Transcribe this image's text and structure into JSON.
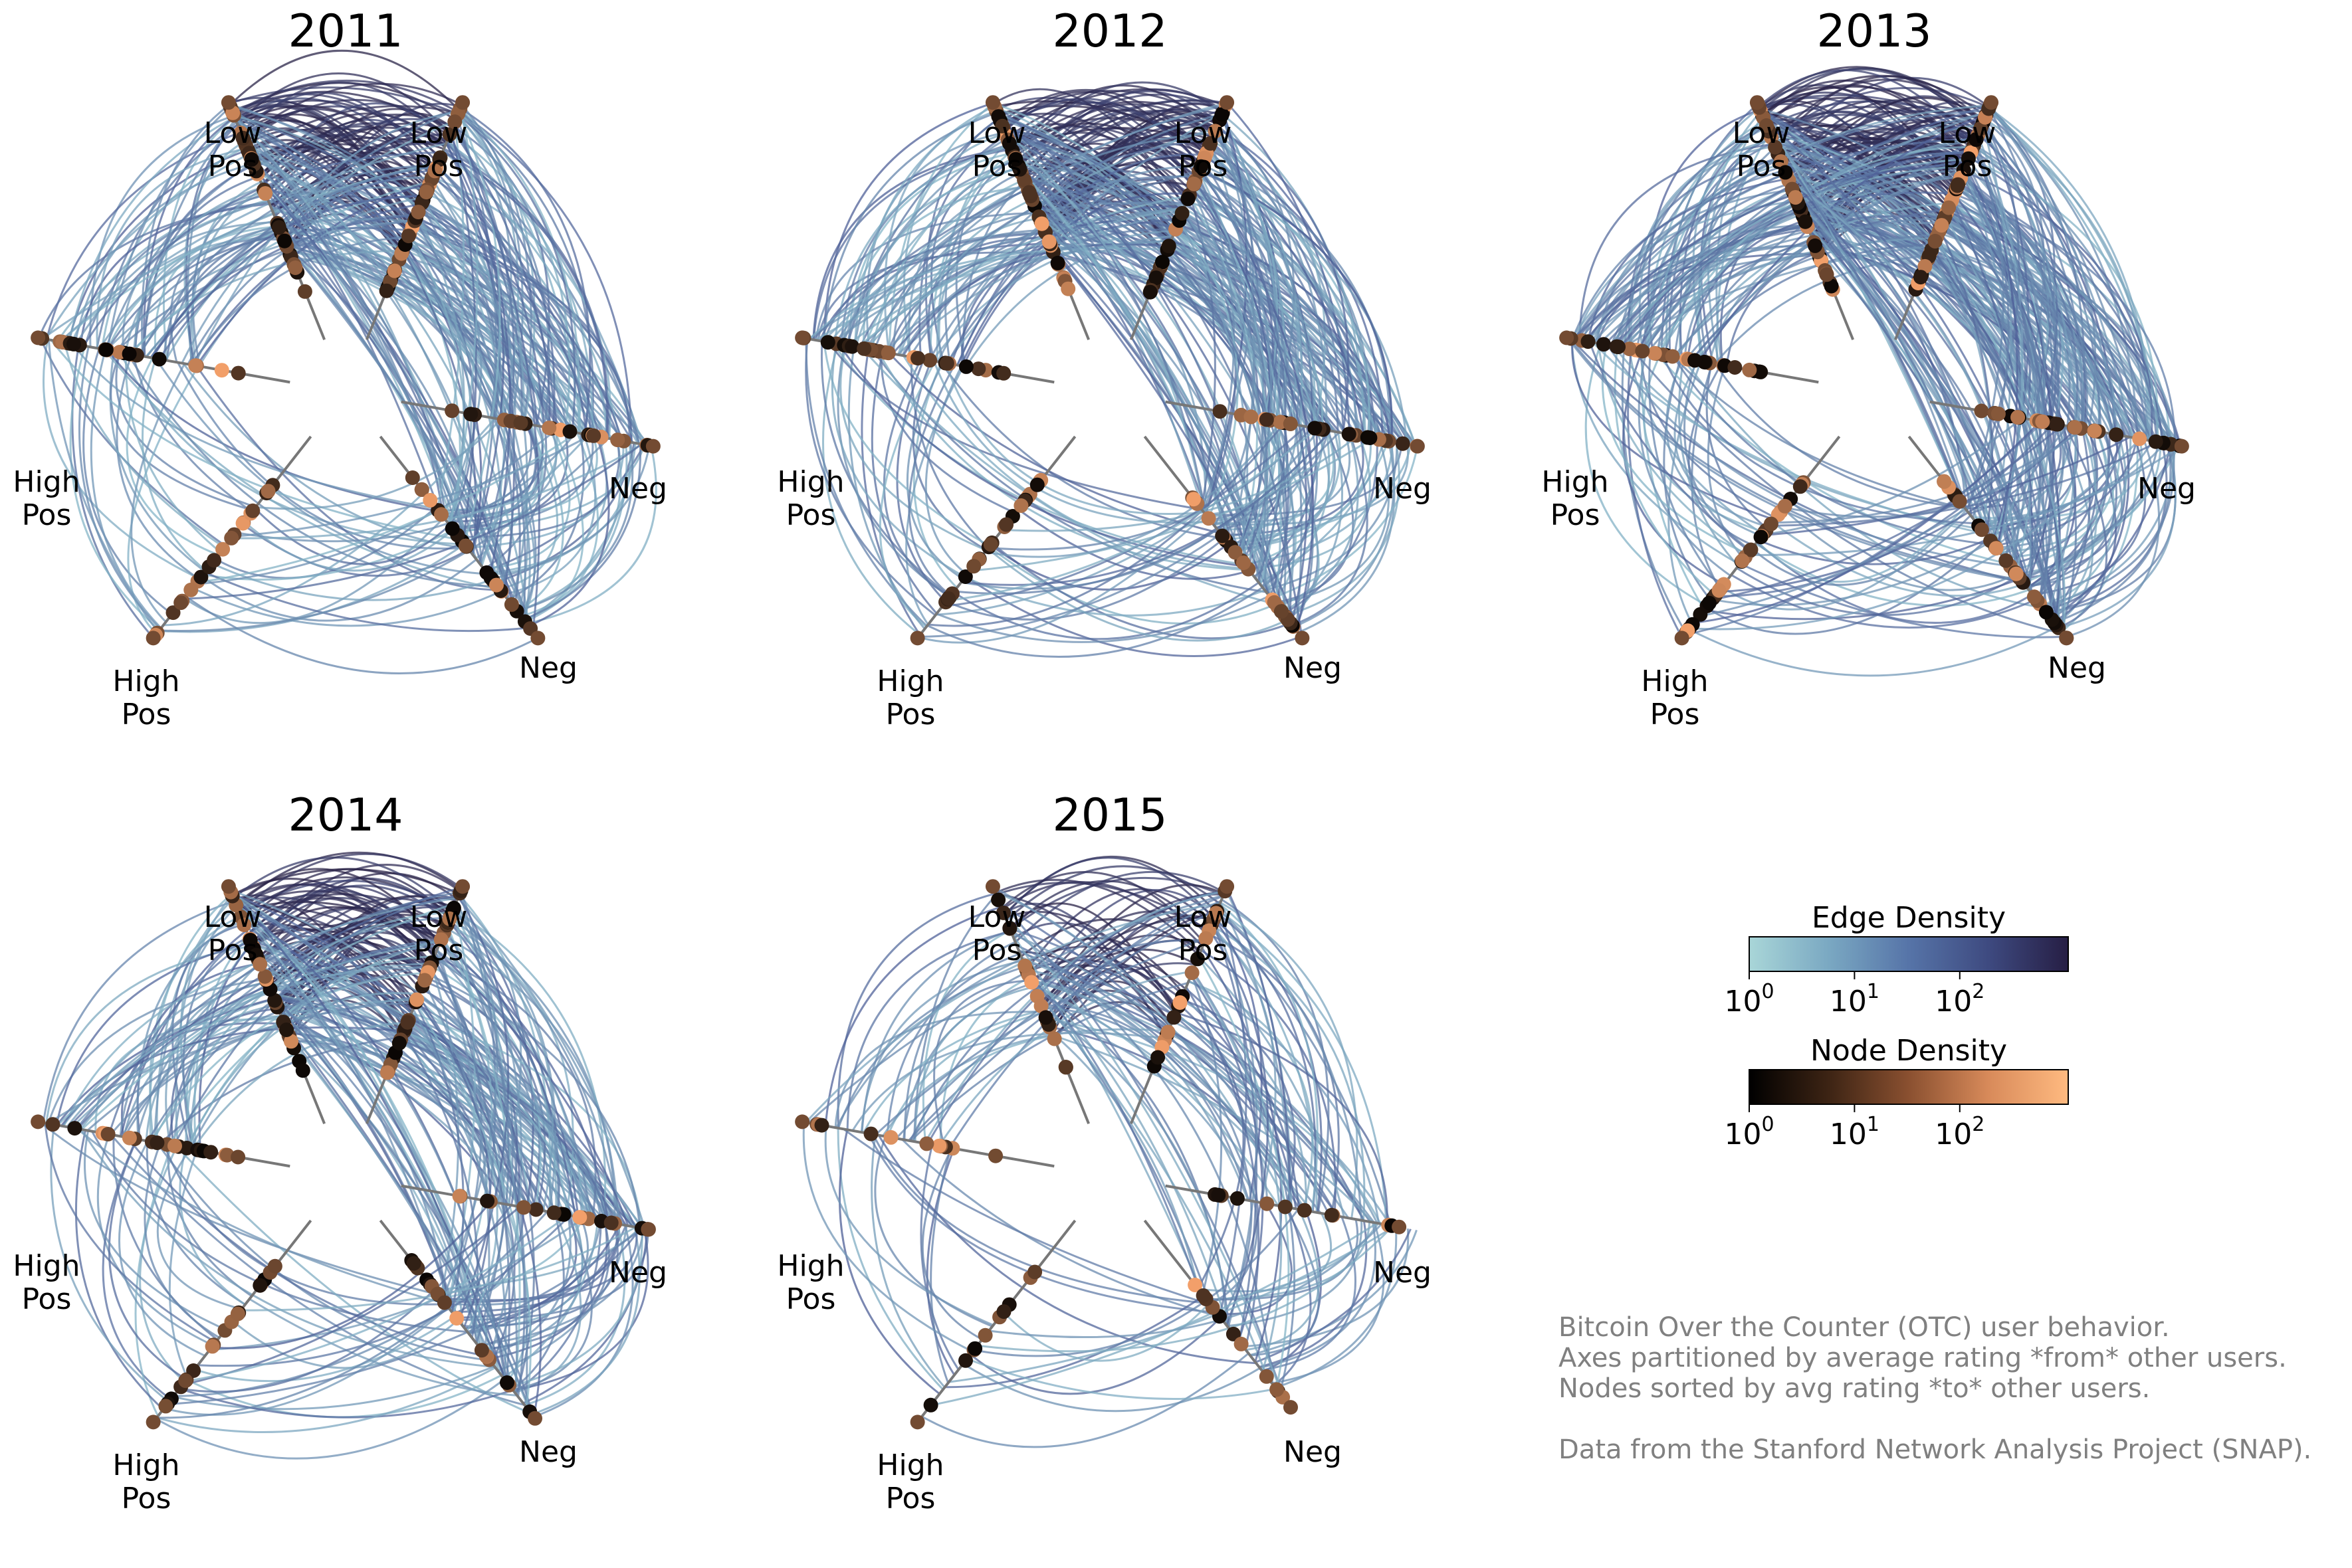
{
  "panels": [
    {
      "title": "2011",
      "density": 1.0,
      "neg_extent": 1.0
    },
    {
      "title": "2012",
      "density": 1.15,
      "neg_extent": 1.2
    },
    {
      "title": "2013",
      "density": 1.35,
      "neg_extent": 1.45
    },
    {
      "title": "2014",
      "density": 0.9,
      "neg_extent": 0.9
    },
    {
      "title": "2015",
      "density": 0.5,
      "neg_extent": 0.6
    }
  ],
  "axis_labels": {
    "low_pos_a": [
      "Low",
      "Pos"
    ],
    "low_pos_b": [
      "Low",
      "Pos"
    ],
    "high_pos_a": [
      "High",
      "Pos"
    ],
    "high_pos_b": [
      "High",
      "Pos"
    ],
    "neg_a": "Neg",
    "neg_b": "Neg"
  },
  "colorbars": [
    {
      "title": "Edge Density",
      "ticks": [
        "10",
        "10",
        "10"
      ],
      "exponents": [
        "0",
        "1",
        "2"
      ],
      "colors": [
        "#a9d6d8",
        "#7aa8c2",
        "#5674a8",
        "#3e4a80",
        "#261e44"
      ]
    },
    {
      "title": "Node Density",
      "ticks": [
        "10",
        "10",
        "10"
      ],
      "exponents": [
        "0",
        "1",
        "2"
      ],
      "colors": [
        "#000000",
        "#3d2414",
        "#8a5030",
        "#d88a5a",
        "#ffba80"
      ]
    }
  ],
  "caption": [
    "Bitcoin Over the Counter (OTC) user behavior.",
    "Axes partitioned by average rating *from* other users.",
    "Nodes sorted by avg rating *to* other users.",
    "",
    "Data from the Stanford Network Analysis Project (SNAP)."
  ],
  "colors": {
    "edge_dark": "#2a2347",
    "edge_mid": "#4e5f97",
    "edge_light": "#86b6c8",
    "node_dark": "#0a0604",
    "node_light": "#f3a06a",
    "axis": "#777777"
  }
}
